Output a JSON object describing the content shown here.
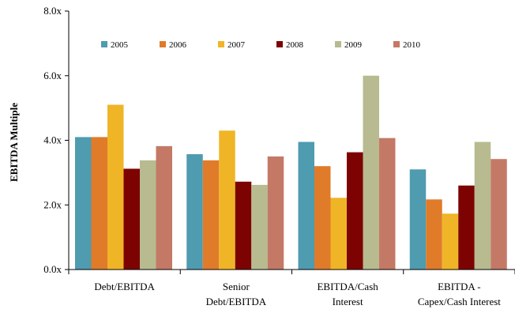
{
  "chart_data": {
    "type": "bar",
    "title": "",
    "xlabel": "",
    "ylabel": "EBITDA Multiple",
    "ylim": [
      0,
      8
    ],
    "yticks": [
      "0.0x",
      "2.0x",
      "4.0x",
      "6.0x",
      "8.0x"
    ],
    "grid": false,
    "legend_position": "top",
    "categories": [
      [
        "Debt/EBITDA"
      ],
      [
        "Senior",
        "Debt/EBITDA"
      ],
      [
        "EBITDA/Cash",
        "Interest"
      ],
      [
        "EBITDA -",
        "Capex/Cash Interest"
      ]
    ],
    "series": [
      {
        "name": "2005",
        "color": "#4f9bb0",
        "values": [
          4.1,
          3.57,
          3.95,
          3.1
        ]
      },
      {
        "name": "2006",
        "color": "#e07b2a",
        "values": [
          4.1,
          3.38,
          3.2,
          2.17
        ]
      },
      {
        "name": "2007",
        "color": "#efb526",
        "values": [
          5.1,
          4.3,
          2.22,
          1.73
        ]
      },
      {
        "name": "2008",
        "color": "#7d0303",
        "values": [
          3.12,
          2.72,
          3.63,
          2.6
        ]
      },
      {
        "name": "2009",
        "color": "#b7bb8f",
        "values": [
          3.38,
          2.62,
          6.0,
          3.95
        ]
      },
      {
        "name": "2010",
        "color": "#c47966",
        "values": [
          3.82,
          3.5,
          4.07,
          3.42
        ]
      }
    ]
  }
}
